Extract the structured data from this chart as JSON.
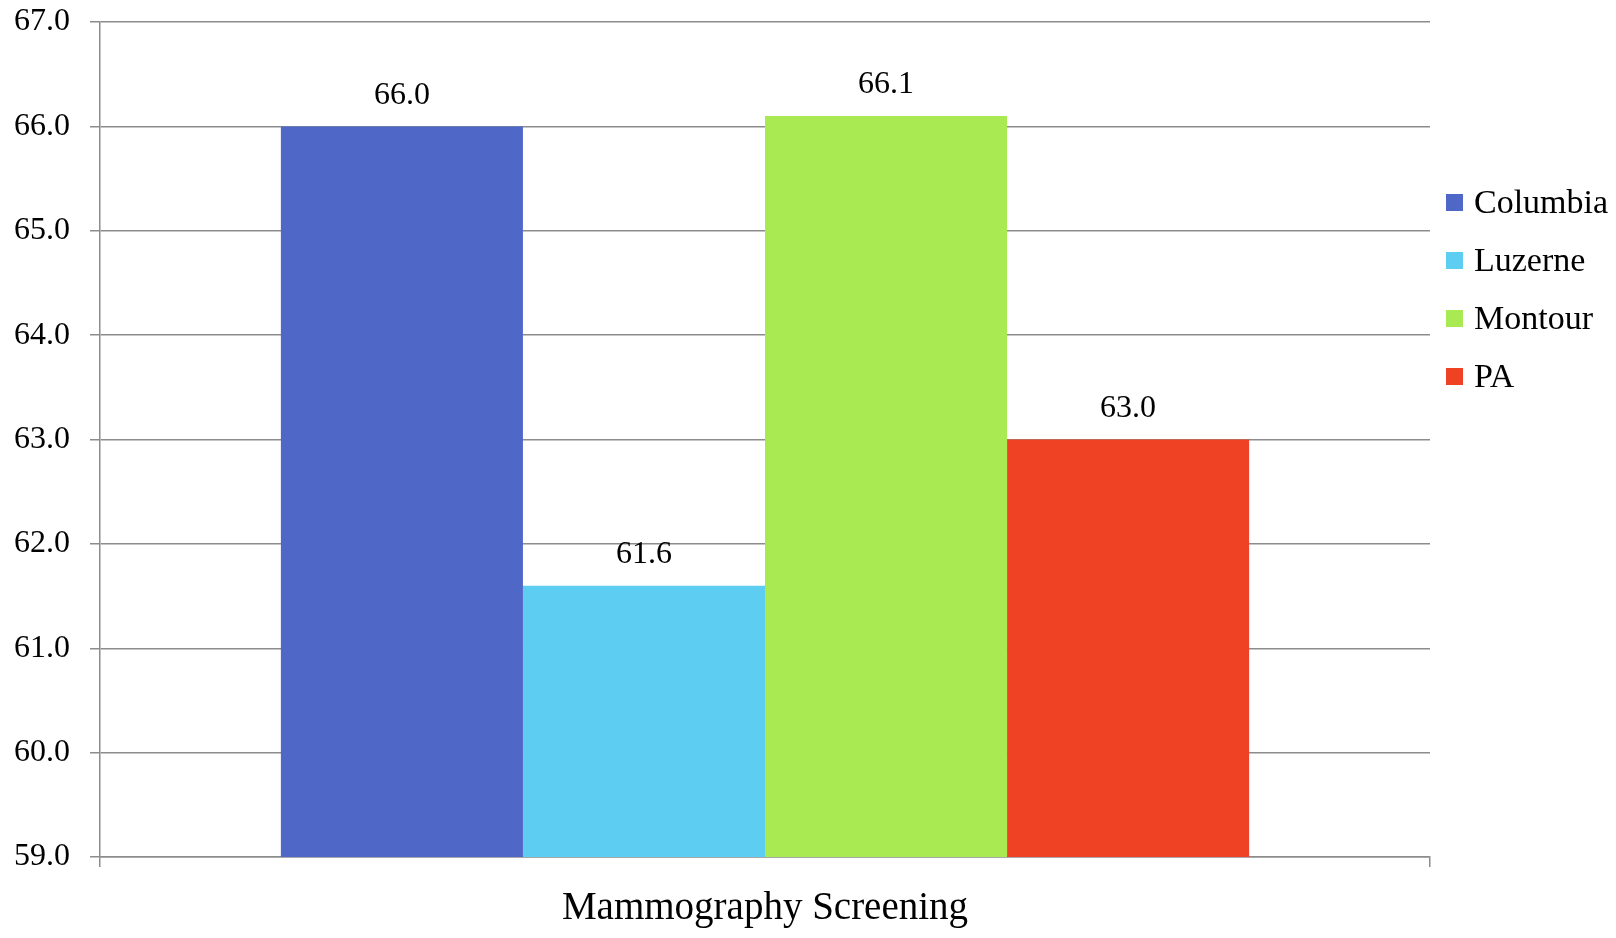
{
  "chart_data": {
    "type": "bar",
    "categories": [
      "Mammography Screening"
    ],
    "series": [
      {
        "name": "Columbia",
        "color": "#4f67c7",
        "values": [
          66.0
        ],
        "value_labels": [
          "66.0"
        ]
      },
      {
        "name": "Luzerne",
        "color": "#5ecdf2",
        "values": [
          61.6
        ],
        "value_labels": [
          "61.6"
        ]
      },
      {
        "name": "Montour",
        "color": "#a9ea52",
        "values": [
          66.1
        ],
        "value_labels": [
          "66.1"
        ]
      },
      {
        "name": "PA",
        "color": "#ef4224",
        "values": [
          63.0
        ],
        "value_labels": [
          "63.0"
        ]
      }
    ],
    "ylim": [
      59,
      67
    ],
    "yticks": [
      {
        "value": 59,
        "label": "59.0"
      },
      {
        "value": 60,
        "label": "60.0"
      },
      {
        "value": 61,
        "label": "61.0"
      },
      {
        "value": 62,
        "label": "62.0"
      },
      {
        "value": 63,
        "label": "63.0"
      },
      {
        "value": 64,
        "label": "64.0"
      },
      {
        "value": 65,
        "label": "65.0"
      },
      {
        "value": 66,
        "label": "66.0"
      },
      {
        "value": 67,
        "label": "67.0"
      }
    ],
    "grid": "y",
    "legend": "right"
  }
}
